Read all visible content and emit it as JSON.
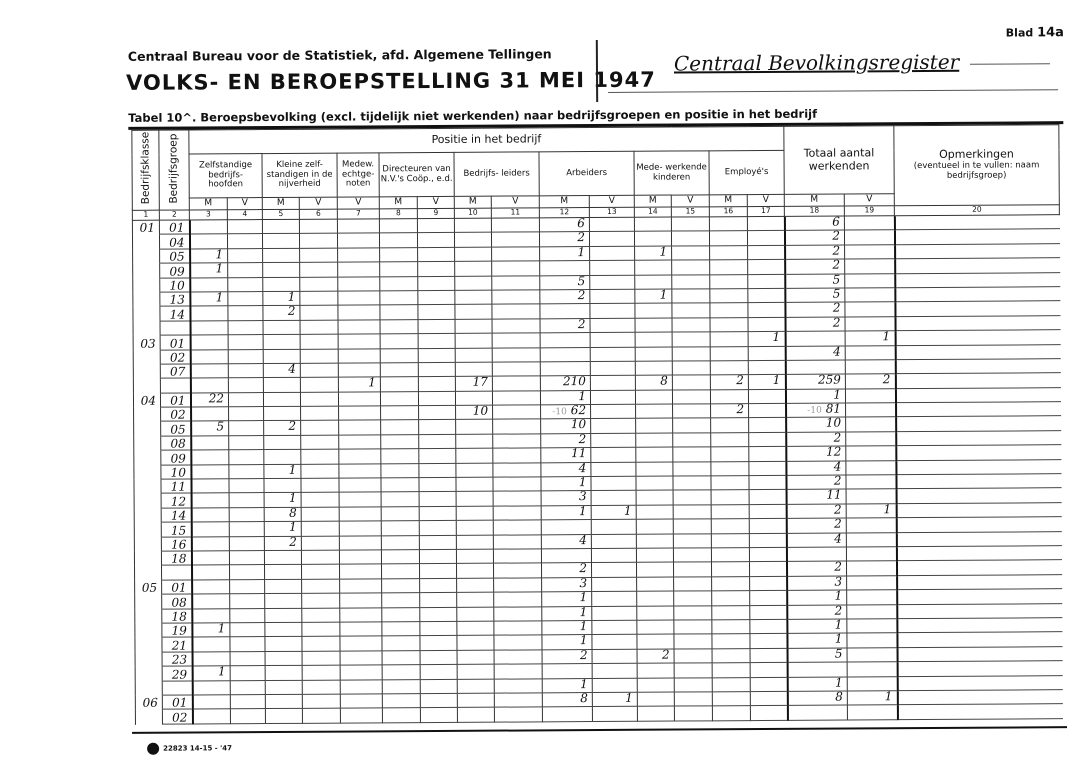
{
  "header": {
    "bureau": "Centraal Bureau voor de Statistiek, afd. Algemene Tellingen",
    "title": "VOLKS- EN BEROEPSTELLING 31 MEI 1947",
    "register": "Centraal Bevolkingsregister",
    "blad_label": "Blad",
    "blad_number": "14a",
    "table_title": "Tabel 10^.  Beroepsbevolking (excl. tijdelijk niet werkenden) naar bedrijfsgroepen en positie in het bedrijf"
  },
  "columns": {
    "klasse": "Bedrijfsklasse",
    "groep": "Bedrijfsgroep",
    "positie": "Positie in het bedrijf",
    "zelf": "Zelfstandige bedrijfs- hoofden",
    "kleine": "Kleine zelf- standigen in de nijverheid",
    "medew": "Medew. echtge- noten",
    "dir": "Directeuren van N.V.'s Coöp., e.d.",
    "bedr": "Bedrijfs- leiders",
    "arb": "Arbeiders",
    "mede": "Mede- werkende kinderen",
    "empl": "Employé's",
    "totaal": "Totaal aantal werkenden",
    "opm": "Opmerkingen",
    "opm_sub": "(eventueel in te vullen: naam bedrijfsgroep)",
    "m": "M",
    "v": "V",
    "numbers": [
      "1",
      "2",
      "3",
      "4",
      "5",
      "6",
      "7",
      "8",
      "9",
      "10",
      "11",
      "12",
      "13",
      "14",
      "15",
      "16",
      "17",
      "18",
      "19",
      "20"
    ]
  },
  "rows": [
    {
      "k": "01",
      "g": "01",
      "c12": "6",
      "c18": "6"
    },
    {
      "g": "04",
      "c12": "2",
      "c18": "2"
    },
    {
      "g": "05",
      "c3": "1",
      "c12": "1",
      "c14": "1",
      "c18": "2"
    },
    {
      "g": "09",
      "c3": "1",
      "c18": "2"
    },
    {
      "g": "10",
      "c12": "5",
      "c18": "5"
    },
    {
      "g": "13",
      "c3": "1",
      "c5": "1",
      "c12": "2",
      "c14": "1",
      "c18": "5"
    },
    {
      "g": "14",
      "c5": "2",
      "c18": "2"
    },
    {
      "c12": "2",
      "c18": "2"
    },
    {
      "k": "03",
      "g": "01",
      "c17": "1",
      "c19": "1"
    },
    {
      "g": "02",
      "c18": "4"
    },
    {
      "g": "07",
      "c5": "4"
    },
    {
      "c7": "1",
      "c10": "17",
      "c12": "210",
      "c14": "8",
      "c16": "2",
      "c17": "1",
      "c18": "259",
      "c19": "2"
    },
    {
      "k": "04",
      "g": "01",
      "c3": "22",
      "c12": "1",
      "c18": "1"
    },
    {
      "g": "02",
      "c10": "10",
      "c12": "62",
      "c12_note": "-10",
      "c16": "2",
      "c18": "81",
      "c18_note": "-10"
    },
    {
      "g": "05",
      "c3": "5",
      "c5": "2",
      "c12": "10",
      "c18": "10"
    },
    {
      "g": "08",
      "c12": "2",
      "c18": "2"
    },
    {
      "g": "09",
      "c12": "11",
      "c18": "12"
    },
    {
      "g": "10",
      "c5": "1",
      "c12": "4",
      "c18": "4"
    },
    {
      "g": "11",
      "c12": "1",
      "c18": "2"
    },
    {
      "g": "12",
      "c5": "1",
      "c12": "3",
      "c18": "11"
    },
    {
      "g": "14",
      "c5": "8",
      "c12": "1",
      "c13": "1",
      "c18": "2",
      "c19": "1"
    },
    {
      "g": "15",
      "c5": "1",
      "c18": "2"
    },
    {
      "g": "16",
      "c5": "2",
      "c12": "4",
      "c18": "4"
    },
    {
      "g": "18"
    },
    {
      "c12": "2",
      "c18": "2"
    },
    {
      "k": "05",
      "g": "01",
      "c12": "3",
      "c18": "3"
    },
    {
      "g": "08",
      "c12": "1",
      "c18": "1"
    },
    {
      "g": "18",
      "c12": "1",
      "c18": "2"
    },
    {
      "g": "19",
      "c3": "1",
      "c12": "1",
      "c18": "1"
    },
    {
      "g": "21",
      "c12": "1",
      "c18": "1"
    },
    {
      "g": "23",
      "c12": "2",
      "c14": "2",
      "c18": "5"
    },
    {
      "g": "29",
      "c3": "1"
    },
    {
      "c12": "1",
      "c18": "1"
    },
    {
      "k": "06",
      "g": "01",
      "c12": "8",
      "c13": "1",
      "c18": "8",
      "c19": "1"
    },
    {
      "g": "02"
    }
  ],
  "footer": {
    "print_code": "22823 14-15 - '47"
  }
}
